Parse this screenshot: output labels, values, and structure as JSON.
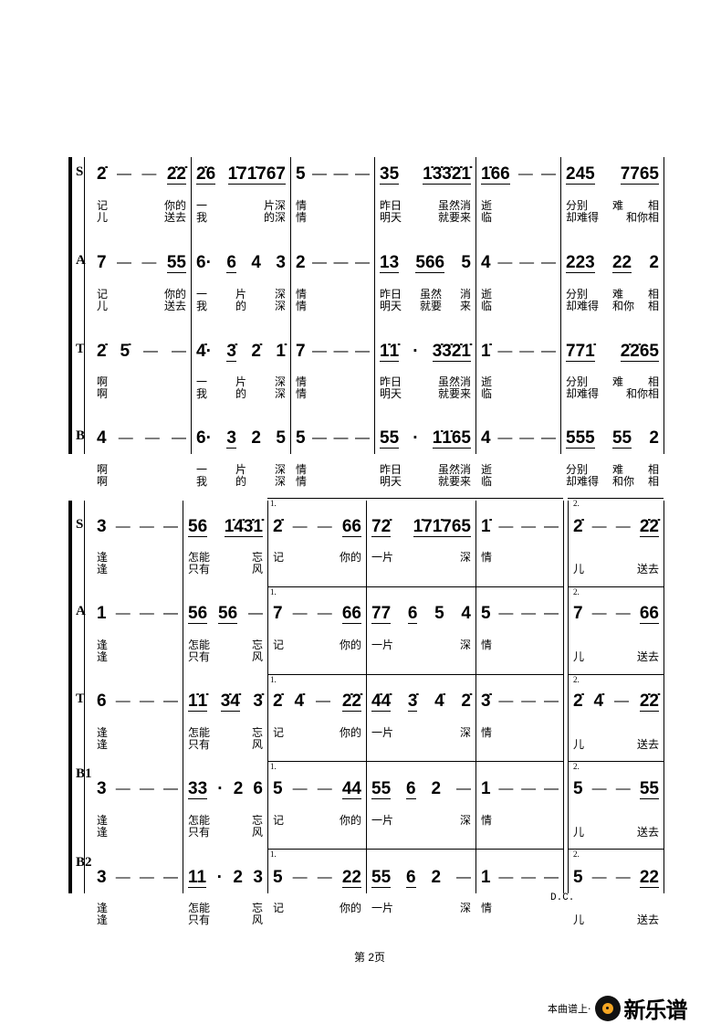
{
  "systems": [
    {
      "parts": [
        {
          "label": "S",
          "measures": [
            [
              {
                "n": "2̇"
              },
              {
                "n": "—"
              },
              {
                "n": "—"
              },
              {
                "n": "2̇2̇",
                "u": true
              }
            ],
            [
              {
                "n": "2̇6",
                "u": true
              },
              {
                "n": "1̇71̇767",
                "u": true
              }
            ],
            [
              {
                "n": "5"
              },
              {
                "n": "—"
              },
              {
                "n": "—"
              },
              {
                "n": "—"
              }
            ],
            [
              {
                "n": "35",
                "u": true
              },
              {
                "n": "1̇3̇3̇2̇1̇",
                "u": true
              }
            ],
            [
              {
                "n": "1̇66",
                "u": true
              },
              {
                "n": "—"
              },
              {
                "n": "—"
              }
            ],
            [
              {
                "n": "245",
                "u": true
              },
              {
                "n": "7765",
                "u": true
              }
            ]
          ],
          "lyrics": [
            [
              "记 你的",
              "儿 送去"
            ],
            [
              "一 片深",
              "我 的深"
            ],
            [
              "情",
              "情"
            ],
            [
              "昨日 虽然消",
              "明天 就要来"
            ],
            [
              "逝",
              "临"
            ],
            [
              "分别 难 相",
              "却难得 和你相"
            ]
          ]
        },
        {
          "label": "A",
          "measures": [
            [
              {
                "n": "7"
              },
              {
                "n": "—"
              },
              {
                "n": "—"
              },
              {
                "n": "55",
                "u": true
              }
            ],
            [
              {
                "n": "6·"
              },
              {
                "n": "6",
                "u": true
              },
              {
                "n": "4"
              },
              {
                "n": "3"
              }
            ],
            [
              {
                "n": "2"
              },
              {
                "n": "—"
              },
              {
                "n": "—"
              },
              {
                "n": "—"
              }
            ],
            [
              {
                "n": "13",
                "u": true
              },
              {
                "n": "566",
                "u": true
              },
              {
                "n": "5"
              }
            ],
            [
              {
                "n": "4"
              },
              {
                "n": "—"
              },
              {
                "n": "—"
              },
              {
                "n": "—"
              }
            ],
            [
              {
                "n": "223",
                "u": true
              },
              {
                "n": "22",
                "u": true
              },
              {
                "n": "2"
              }
            ]
          ],
          "lyrics": [
            [
              "记 你的",
              "儿 送去"
            ],
            [
              "一 片 深",
              "我 的 深"
            ],
            [
              "情",
              "情"
            ],
            [
              "昨日 虽然 消",
              "明天 就要 来"
            ],
            [
              "逝",
              "临"
            ],
            [
              "分别 难 相",
              "却难得 和你 相"
            ]
          ]
        },
        {
          "label": "T",
          "measures": [
            [
              {
                "n": "2̇"
              },
              {
                "n": "5̇"
              },
              {
                "n": "—"
              },
              {
                "n": "—"
              }
            ],
            [
              {
                "n": "4̇·"
              },
              {
                "n": "3̇",
                "u": true
              },
              {
                "n": "2̇"
              },
              {
                "n": "1̇"
              }
            ],
            [
              {
                "n": "7"
              },
              {
                "n": "—"
              },
              {
                "n": "—"
              },
              {
                "n": "—"
              }
            ],
            [
              {
                "n": "1̇1̇",
                "u": true
              },
              {
                "n": "·"
              },
              {
                "n": "3̇3̇2̇1̇",
                "u": true
              }
            ],
            [
              {
                "n": "1̇"
              },
              {
                "n": "—"
              },
              {
                "n": "—"
              },
              {
                "n": "—"
              }
            ],
            [
              {
                "n": "771̇",
                "u": true
              },
              {
                "n": "2̇2̇65",
                "u": true
              }
            ]
          ],
          "lyrics": [
            [
              "啊",
              "啊"
            ],
            [
              "一 片 深",
              "我 的 深"
            ],
            [
              "情",
              "情"
            ],
            [
              "昨日 虽然消",
              "明天 就要来"
            ],
            [
              "逝",
              "临"
            ],
            [
              "分别 难 相",
              "却难得 和你相"
            ]
          ]
        },
        {
          "label": "B",
          "measures": [
            [
              {
                "n": "4"
              },
              {
                "n": "—"
              },
              {
                "n": "—"
              },
              {
                "n": "—"
              }
            ],
            [
              {
                "n": "6·"
              },
              {
                "n": "3",
                "u": true
              },
              {
                "n": "2"
              },
              {
                "n": "5"
              }
            ],
            [
              {
                "n": "5"
              },
              {
                "n": "—"
              },
              {
                "n": "—"
              },
              {
                "n": "—"
              }
            ],
            [
              {
                "n": "55",
                "u": true
              },
              {
                "n": "·"
              },
              {
                "n": "1̇1̇65",
                "u": true
              }
            ],
            [
              {
                "n": "4"
              },
              {
                "n": "—"
              },
              {
                "n": "—"
              },
              {
                "n": "—"
              }
            ],
            [
              {
                "n": "555",
                "u": true
              },
              {
                "n": "55",
                "u": true
              },
              {
                "n": "2"
              }
            ]
          ],
          "lyrics": [
            [
              "啊",
              "啊"
            ],
            [
              "一 片 深",
              "我 的 深"
            ],
            [
              "情",
              "情"
            ],
            [
              "昨日 虽然消",
              "明天 就要来"
            ],
            [
              "逝",
              "临"
            ],
            [
              "分别 难 相",
              "却难得 和你 相"
            ]
          ]
        }
      ]
    },
    {
      "endings": [
        "1.",
        "2."
      ],
      "parts": [
        {
          "label": "S",
          "measures": [
            [
              {
                "n": "3"
              },
              {
                "n": "—"
              },
              {
                "n": "—"
              },
              {
                "n": "—"
              }
            ],
            [
              {
                "n": "56",
                "u": true
              },
              {
                "n": "1̇4̇3̇1̇",
                "u": true
              }
            ],
            [
              {
                "n": "2̇"
              },
              {
                "n": "—"
              },
              {
                "n": "—"
              },
              {
                "n": "66",
                "u": true
              }
            ],
            [
              {
                "n": "72̇",
                "u": true
              },
              {
                "n": "1̇71̇765",
                "u": true
              }
            ],
            [
              {
                "n": "1̇"
              },
              {
                "n": "—"
              },
              {
                "n": "—"
              },
              {
                "n": "—"
              }
            ],
            [
              {
                "n": "2̇"
              },
              {
                "n": "—"
              },
              {
                "n": "—"
              },
              {
                "n": "2̇2̇",
                "u": true
              }
            ]
          ],
          "lyrics": [
            [
              "逢",
              "逢"
            ],
            [
              "怎能 忘",
              "只有 风"
            ],
            [
              "记 你的",
              ""
            ],
            [
              "一片 深",
              ""
            ],
            [
              "情",
              ""
            ],
            [
              "",
              "儿 送去"
            ]
          ]
        },
        {
          "label": "A",
          "measures": [
            [
              {
                "n": "1"
              },
              {
                "n": "—"
              },
              {
                "n": "—"
              },
              {
                "n": "—"
              }
            ],
            [
              {
                "n": "56",
                "u": true
              },
              {
                "n": "56",
                "u": true
              },
              {
                "n": "—"
              }
            ],
            [
              {
                "n": "7"
              },
              {
                "n": "—"
              },
              {
                "n": "—"
              },
              {
                "n": "66",
                "u": true
              }
            ],
            [
              {
                "n": "77",
                "u": true
              },
              {
                "n": "6",
                "u": true
              },
              {
                "n": "5"
              },
              {
                "n": "4"
              }
            ],
            [
              {
                "n": "5"
              },
              {
                "n": "—"
              },
              {
                "n": "—"
              },
              {
                "n": "—"
              }
            ],
            [
              {
                "n": "7"
              },
              {
                "n": "—"
              },
              {
                "n": "—"
              },
              {
                "n": "66",
                "u": true
              }
            ]
          ],
          "lyrics": [
            [
              "逢",
              "逢"
            ],
            [
              "怎能 忘",
              "只有 风"
            ],
            [
              "记 你的",
              ""
            ],
            [
              "一片 深",
              ""
            ],
            [
              "情",
              ""
            ],
            [
              "",
              "儿 送去"
            ]
          ]
        },
        {
          "label": "T",
          "measures": [
            [
              {
                "n": "6"
              },
              {
                "n": "—"
              },
              {
                "n": "—"
              },
              {
                "n": "—"
              }
            ],
            [
              {
                "n": "1̇1̇",
                "u": true
              },
              {
                "n": "3̇4̇",
                "u": true
              },
              {
                "n": "3̇"
              }
            ],
            [
              {
                "n": "2̇"
              },
              {
                "n": "4̇"
              },
              {
                "n": "—"
              },
              {
                "n": "2̇2̇",
                "u": true
              }
            ],
            [
              {
                "n": "4̇4̇",
                "u": true
              },
              {
                "n": "3̇",
                "u": true
              },
              {
                "n": "4̇"
              },
              {
                "n": "2̇"
              }
            ],
            [
              {
                "n": "3̇"
              },
              {
                "n": "—"
              },
              {
                "n": "—"
              },
              {
                "n": "—"
              }
            ],
            [
              {
                "n": "2̇"
              },
              {
                "n": "4̇"
              },
              {
                "n": "—"
              },
              {
                "n": "2̇2̇",
                "u": true
              }
            ]
          ],
          "lyrics": [
            [
              "逢",
              "逢"
            ],
            [
              "怎能 忘",
              "只有 风"
            ],
            [
              "记 你的",
              ""
            ],
            [
              "一片 深",
              ""
            ],
            [
              "情",
              ""
            ],
            [
              "",
              "儿 送去"
            ]
          ]
        },
        {
          "label": "B1",
          "measures": [
            [
              {
                "n": "3"
              },
              {
                "n": "—"
              },
              {
                "n": "—"
              },
              {
                "n": "—"
              }
            ],
            [
              {
                "n": "33",
                "u": true
              },
              {
                "n": "·"
              },
              {
                "n": "2"
              },
              {
                "n": "6"
              }
            ],
            [
              {
                "n": "5"
              },
              {
                "n": "—"
              },
              {
                "n": "—"
              },
              {
                "n": "44",
                "u": true
              }
            ],
            [
              {
                "n": "55",
                "u": true
              },
              {
                "n": "6",
                "u": true
              },
              {
                "n": "2"
              },
              {
                "n": "—"
              }
            ],
            [
              {
                "n": "1"
              },
              {
                "n": "—"
              },
              {
                "n": "—"
              },
              {
                "n": "—"
              }
            ],
            [
              {
                "n": "5"
              },
              {
                "n": "—"
              },
              {
                "n": "—"
              },
              {
                "n": "55",
                "u": true
              }
            ]
          ],
          "lyrics": [
            [
              "逢",
              "逢"
            ],
            [
              "怎能 忘",
              "只有 风"
            ],
            [
              "记 你的",
              ""
            ],
            [
              "一片 深",
              ""
            ],
            [
              "情",
              ""
            ],
            [
              "",
              "儿 送去"
            ]
          ]
        },
        {
          "label": "B2",
          "measures": [
            [
              {
                "n": "3"
              },
              {
                "n": "—"
              },
              {
                "n": "—"
              },
              {
                "n": "—"
              }
            ],
            [
              {
                "n": "11",
                "u": true
              },
              {
                "n": "·"
              },
              {
                "n": "2"
              },
              {
                "n": "3"
              }
            ],
            [
              {
                "n": "5"
              },
              {
                "n": "—"
              },
              {
                "n": "—"
              },
              {
                "n": "22",
                "u": true
              }
            ],
            [
              {
                "n": "55",
                "u": true
              },
              {
                "n": "6",
                "u": true
              },
              {
                "n": "2"
              },
              {
                "n": "—"
              }
            ],
            [
              {
                "n": "1"
              },
              {
                "n": "—"
              },
              {
                "n": "—"
              },
              {
                "n": "—"
              }
            ],
            [
              {
                "n": "5"
              },
              {
                "n": "—"
              },
              {
                "n": "—"
              },
              {
                "n": "22",
                "u": true
              }
            ]
          ],
          "lyrics": [
            [
              "逢",
              "逢"
            ],
            [
              "怎能 忘",
              "只有 风"
            ],
            [
              "记 你的",
              ""
            ],
            [
              "一片 深",
              ""
            ],
            [
              "情",
              ""
            ],
            [
              "",
              "儿 送去"
            ]
          ]
        }
      ],
      "dc_mark": "D.C."
    }
  ],
  "page_number": "第 2页",
  "footer": {
    "prefix": "本曲谱上·",
    "brand": "新乐谱",
    "logo_icon": "vinyl-record-icon",
    "logo_accent": "#f5a623"
  }
}
